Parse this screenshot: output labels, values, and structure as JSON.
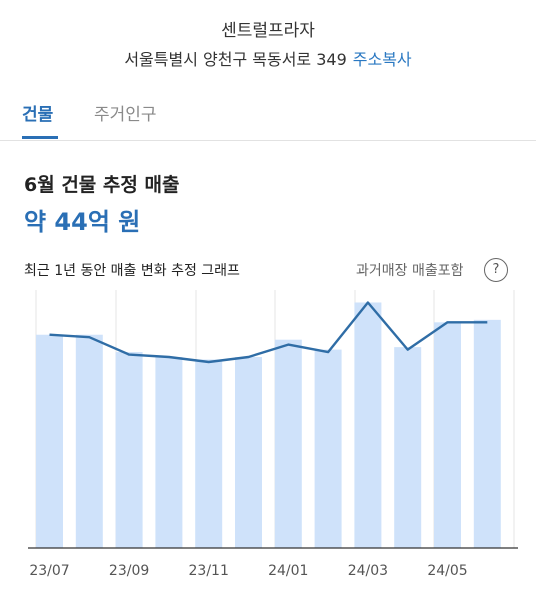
{
  "header": {
    "place_name": "센트럴프라자",
    "address": "서울특별시 양천구 목동서로 349",
    "copy_address_label": "주소복사"
  },
  "tabs": [
    {
      "label": "건물",
      "active": true
    },
    {
      "label": "주거인구",
      "active": false
    }
  ],
  "summary": {
    "title": "6월 건물 추정 매출",
    "value": "약 44억 원"
  },
  "graph": {
    "caption": "최근 1년 동안 매출 변화 추정 그래프",
    "toggle_label": "과거매장 매출포함",
    "help_icon_text": "?"
  },
  "colors": {
    "accent": "#2a6fb5",
    "link": "#2a78c2",
    "bar": "#cfe2fa",
    "line": "#2f6da6"
  },
  "chart_data": {
    "type": "bar",
    "title": "",
    "xlabel": "",
    "ylabel": "",
    "categories": [
      "23/07",
      "23/08",
      "23/09",
      "23/10",
      "23/11",
      "23/12",
      "24/01",
      "24/02",
      "24/03",
      "24/04",
      "24/05",
      "24/06"
    ],
    "tick_labels": [
      "23/07",
      "23/09",
      "23/11",
      "24/01",
      "24/03",
      "24/05"
    ],
    "ylim": [
      0,
      100
    ],
    "grid": false,
    "series": [
      {
        "type": "bar",
        "values": [
          86,
          86,
          79,
          77,
          76,
          77,
          84,
          80,
          99,
          81,
          91,
          92
        ]
      },
      {
        "type": "line",
        "values": [
          86,
          85,
          78,
          77,
          75,
          77,
          82,
          79,
          99,
          80,
          91,
          91
        ]
      }
    ]
  }
}
